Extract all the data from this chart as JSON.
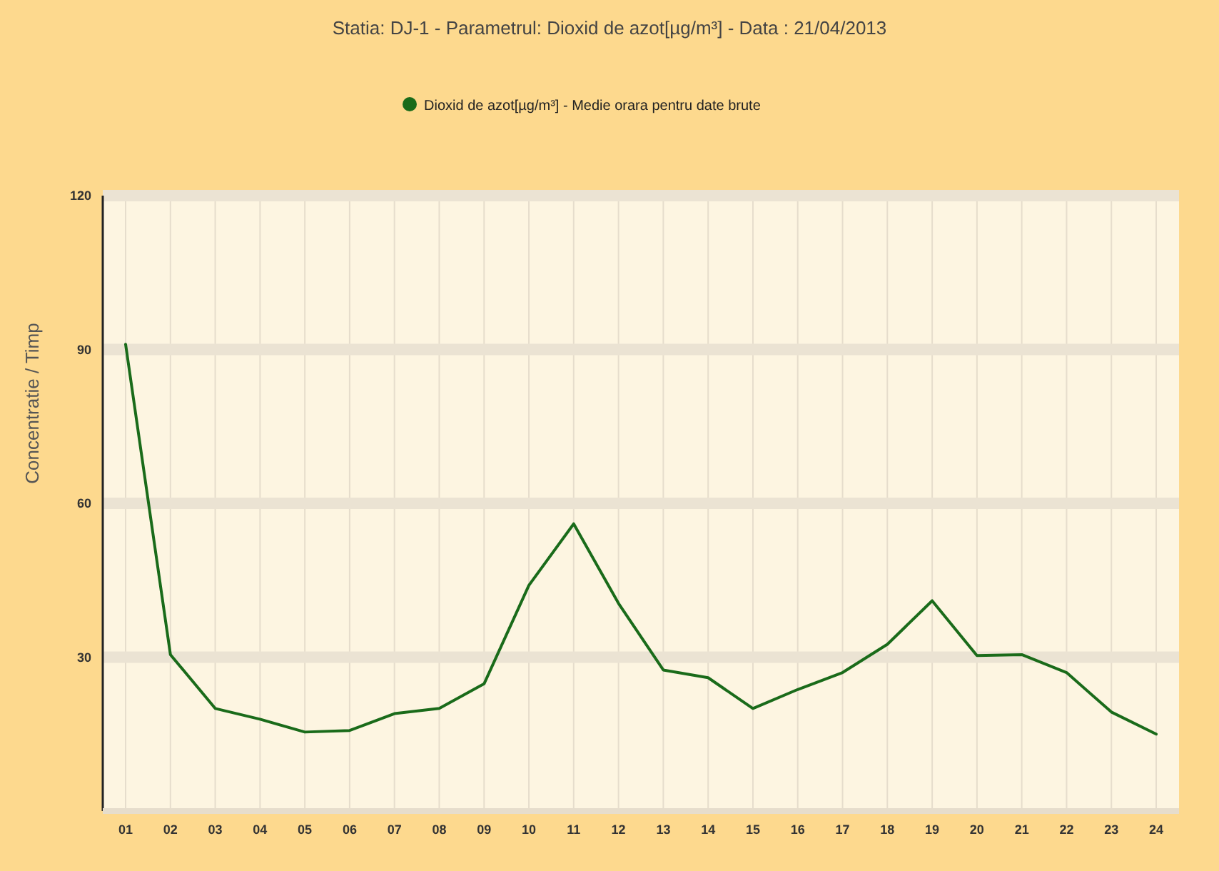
{
  "chart_data": {
    "type": "line",
    "title": "Statia: DJ-1  -  Parametrul: Dioxid de azot[µg/m³]  -  Data : 21/04/2013",
    "ylabel": "Concentratie / Timp",
    "categories": [
      "01",
      "02",
      "03",
      "04",
      "05",
      "06",
      "07",
      "08",
      "09",
      "10",
      "11",
      "12",
      "13",
      "14",
      "15",
      "16",
      "17",
      "18",
      "19",
      "20",
      "21",
      "22",
      "23",
      "24"
    ],
    "series": [
      {
        "name": "Dioxid de azot[µg/m³] - Medie orara pentru date brute",
        "color": "#1a6b1a",
        "values": [
          91,
          30.5,
          20,
          17.9,
          15.4,
          15.7,
          19,
          20,
          24.8,
          44,
          56,
          40.5,
          27.5,
          26,
          20,
          23.7,
          27,
          32.5,
          41,
          30.3,
          30.5,
          27,
          19.3,
          15
        ]
      }
    ],
    "ylim": [
      0,
      120
    ],
    "yticks": [
      30,
      60,
      90,
      120
    ],
    "grid": true,
    "legend": "top",
    "marker": "none",
    "line_style": "solid"
  }
}
